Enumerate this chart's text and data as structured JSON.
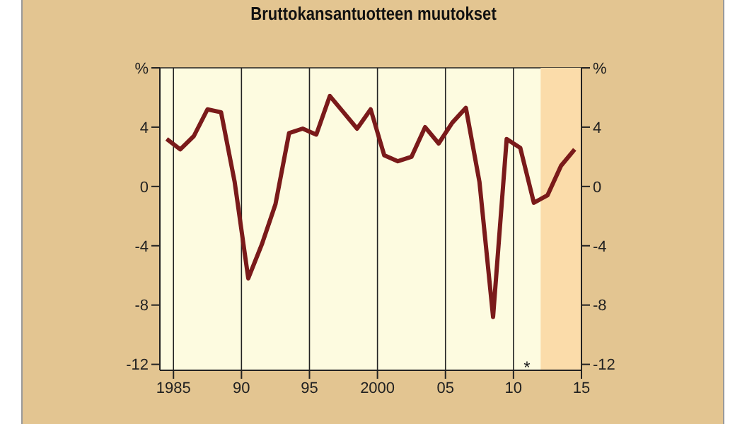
{
  "chart_data": {
    "type": "line",
    "title": "Bruttokansantuotteen muutokset",
    "x": [
      1984.5,
      1985.5,
      1986.5,
      1987.5,
      1988.5,
      1989.5,
      1990.5,
      1991.5,
      1992.5,
      1993.5,
      1994.5,
      1995.5,
      1996.5,
      1997.5,
      1998.5,
      1999.5,
      2000.5,
      2001.5,
      2002.5,
      2003.5,
      2004.5,
      2005.5,
      2006.5,
      2007.5,
      2008.5,
      2009.5,
      2010.5,
      2011.5,
      2012.5,
      2013.5,
      2014.5
    ],
    "series": [
      {
        "color": "#7a1a1a",
        "values": [
          3.2,
          2.5,
          3.4,
          5.2,
          5.0,
          0.3,
          -6.2,
          -3.9,
          -1.2,
          3.6,
          3.9,
          3.5,
          6.1,
          5.0,
          3.9,
          5.2,
          2.1,
          1.7,
          2.0,
          4.0,
          2.9,
          4.3,
          5.3,
          0.3,
          -8.8,
          3.2,
          2.6,
          -1.1,
          -0.6,
          1.4,
          2.5
        ]
      }
    ],
    "xlim": [
      1984,
      2015
    ],
    "xticks": [
      1985,
      {
        "value": 1990,
        "label": "90"
      },
      {
        "value": 1995,
        "label": "95"
      },
      2000,
      {
        "value": 2005,
        "label": "05"
      },
      {
        "value": 2010,
        "label": "10"
      },
      {
        "value": 2015,
        "label": "15"
      }
    ],
    "ylim": [
      -12.4,
      8
    ],
    "yticks": [
      -12,
      -8,
      -4,
      0,
      4,
      {
        "value": 8,
        "label": "%"
      }
    ],
    "y2lim": [
      -12.4,
      8
    ],
    "y2ticks": [
      -12,
      -8,
      -4,
      0,
      4,
      {
        "value": 8,
        "label": "%"
      }
    ],
    "bands": [
      {
        "axis": "x",
        "from": 2012,
        "to": 2015,
        "label": "*",
        "color": "#fbdcaa"
      }
    ],
    "grid": true,
    "marker": "none",
    "line_style": "solid"
  }
}
